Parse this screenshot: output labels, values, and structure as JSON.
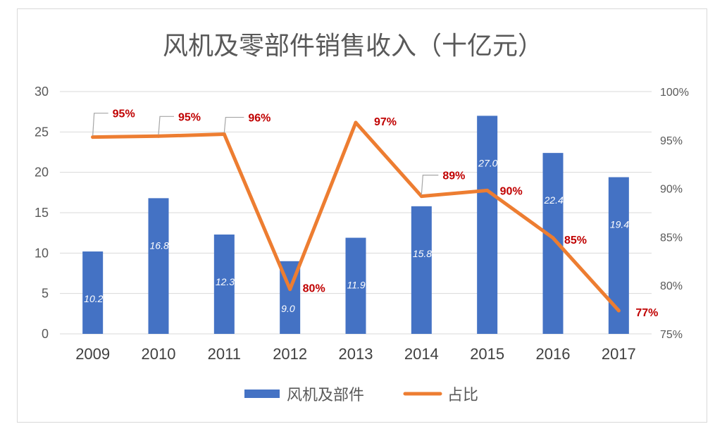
{
  "chart_data": {
    "type": "bar",
    "title": "风机及零部件销售收入（十亿元）",
    "categories": [
      "2009",
      "2010",
      "2011",
      "2012",
      "2013",
      "2014",
      "2015",
      "2016",
      "2017"
    ],
    "series": [
      {
        "name": "风机及部件",
        "type": "bar",
        "axis": "left",
        "color": "#4472C4",
        "values": [
          10.2,
          16.8,
          12.3,
          9.0,
          11.9,
          15.8,
          27.0,
          22.4,
          19.4
        ],
        "labels": [
          "10.2",
          "16.8",
          "12.3",
          "9.0",
          "11.9",
          "15.8",
          "27.0",
          "22.4",
          "19.4"
        ]
      },
      {
        "name": "占比",
        "type": "line",
        "axis": "right",
        "color": "#ED7D31",
        "values": [
          95.3,
          95.4,
          95.6,
          79.6,
          96.8,
          89.2,
          89.8,
          84.9,
          77.4
        ],
        "labels": [
          "95%",
          "95%",
          "96%",
          "80%",
          "97%",
          "89%",
          "90%",
          "85%",
          "77%"
        ]
      }
    ],
    "ylim": [
      0,
      30
    ],
    "yticks": [
      "0",
      "5",
      "10",
      "15",
      "20",
      "25",
      "30"
    ],
    "y2lim": [
      75,
      100
    ],
    "y2ticks": [
      "75%",
      "80%",
      "85%",
      "90%",
      "95%",
      "100%"
    ],
    "grid": true,
    "legend_position": "bottom",
    "label_color": "#C00000"
  }
}
